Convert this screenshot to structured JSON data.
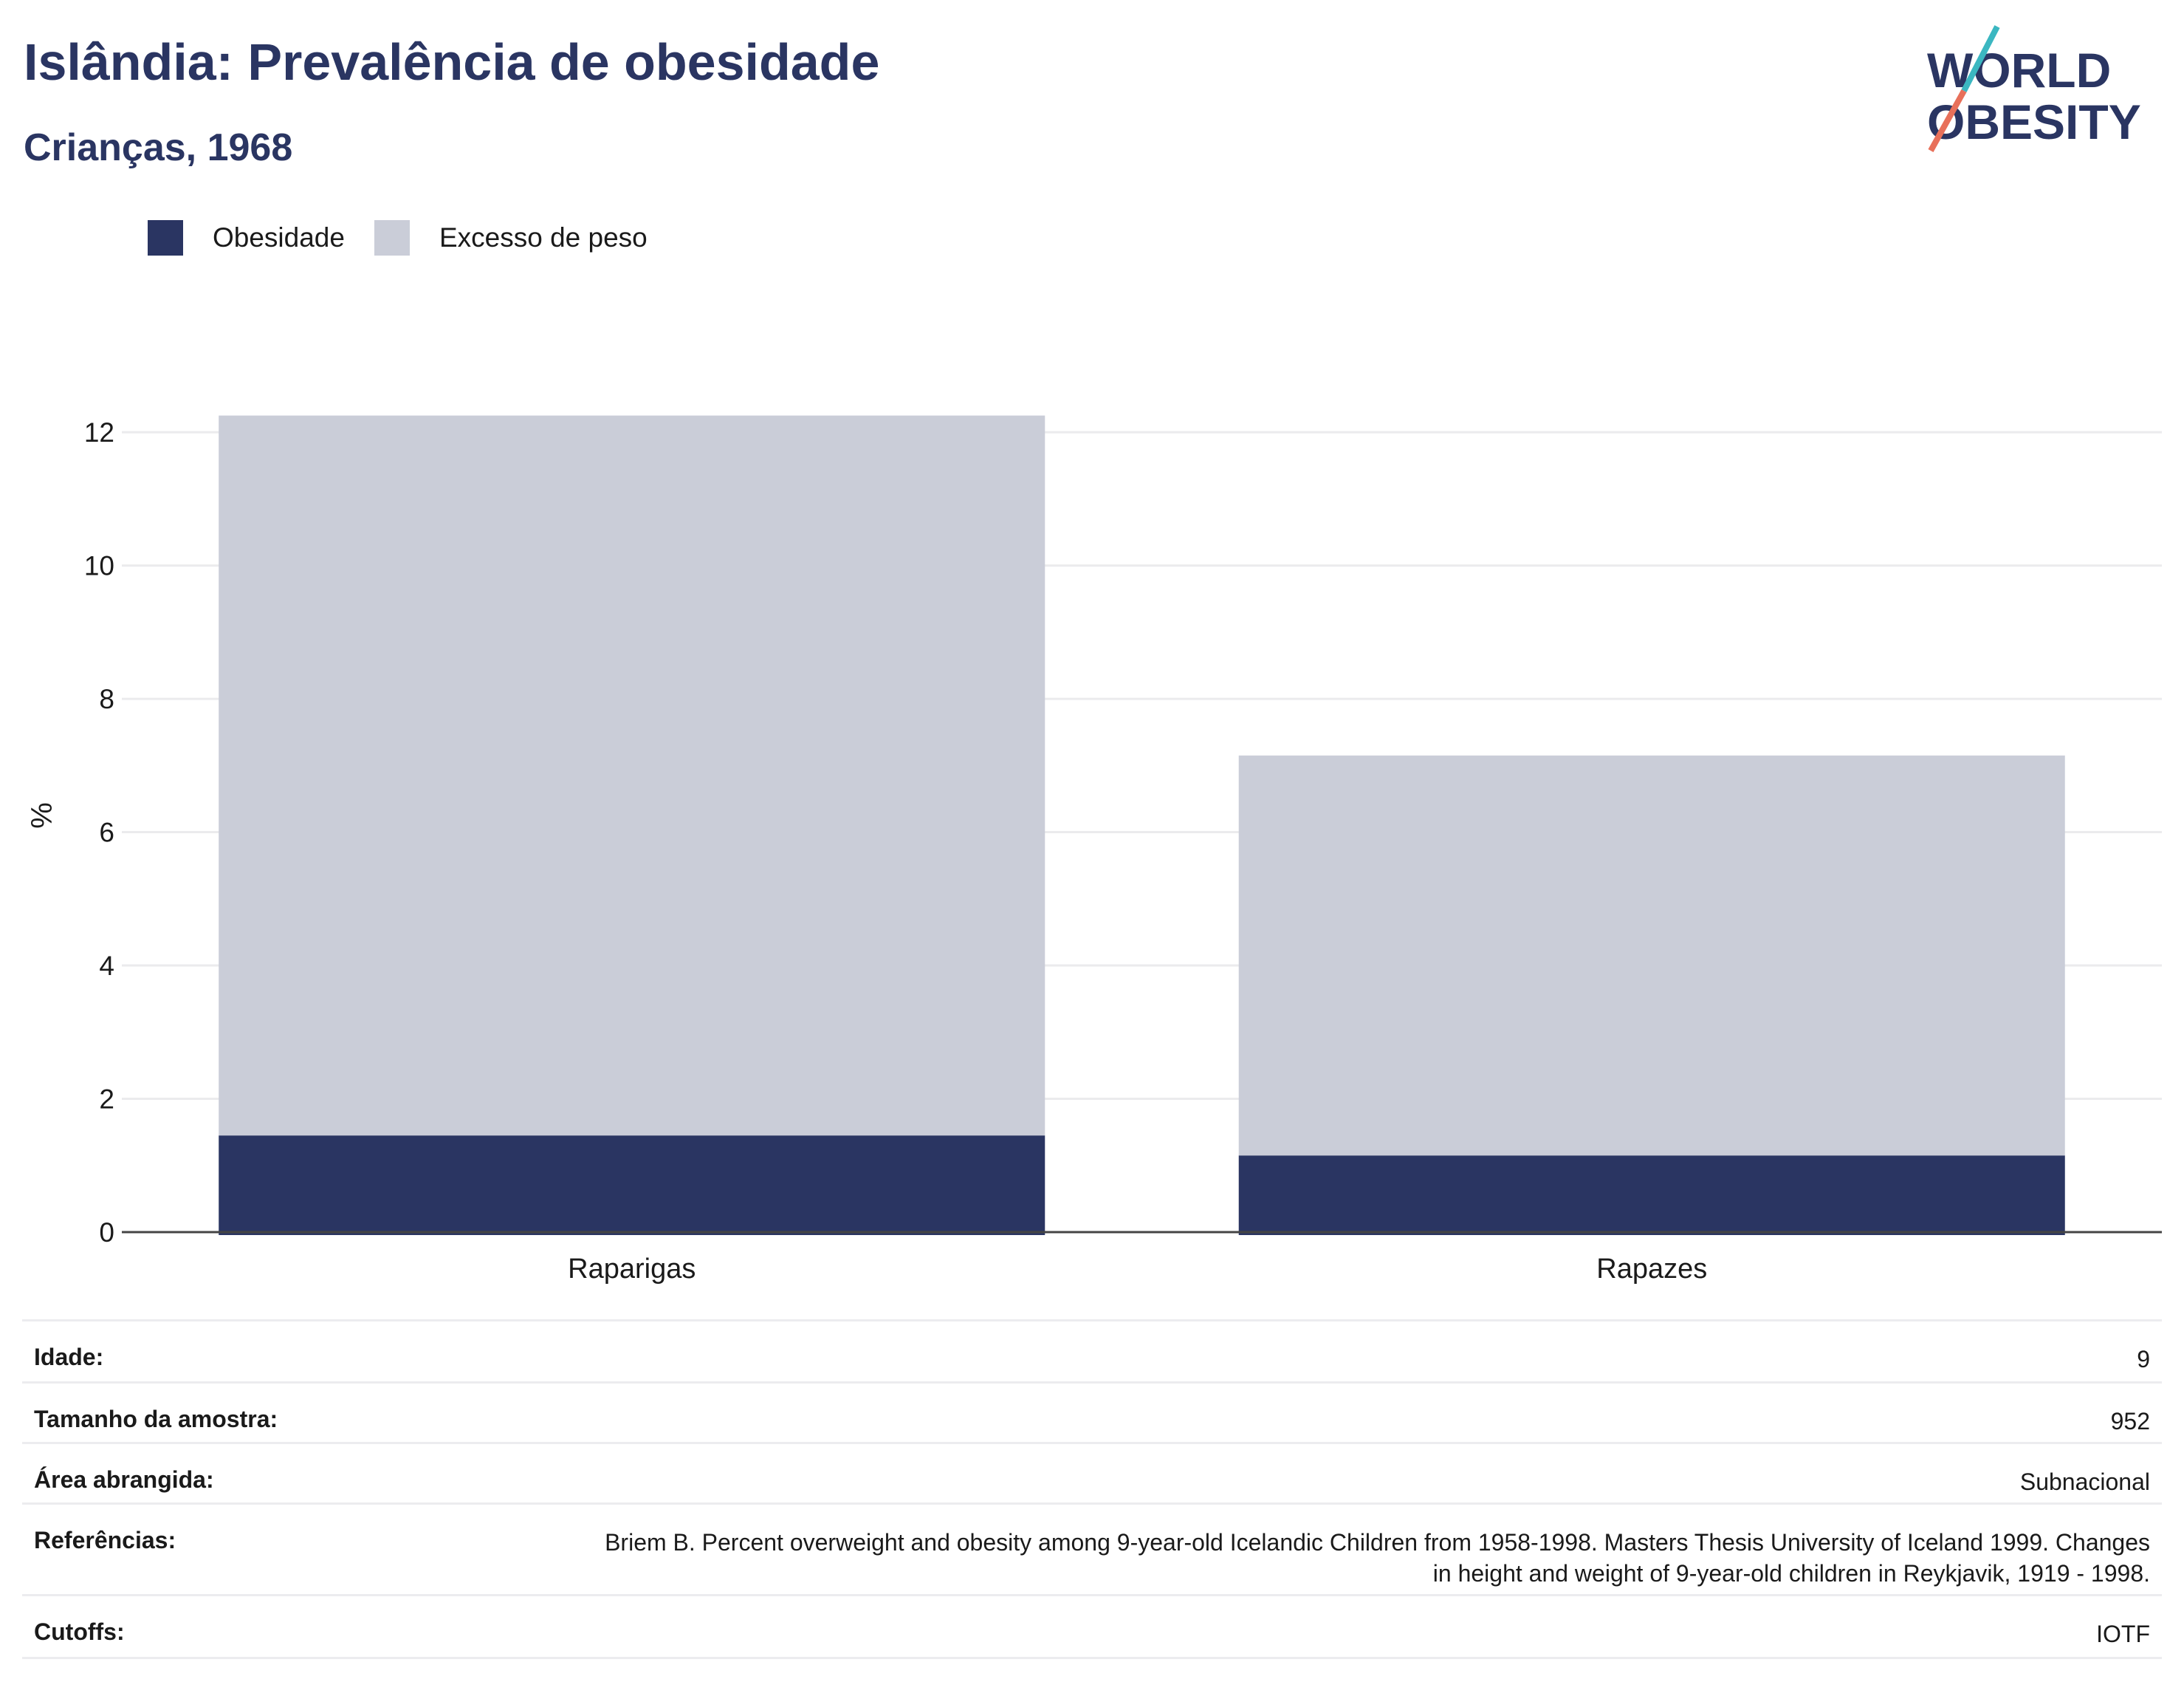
{
  "header": {
    "title": "Islândia: Prevalência de obesidade",
    "subtitle": "Crianças, 1968"
  },
  "logo": {
    "line1": "WORLD",
    "line2": "OBESITY"
  },
  "colors": {
    "obesity": "#2a3562",
    "overweight": "#cacdd8",
    "title": "#2a3562",
    "logo_teal": "#3bb7c1",
    "logo_coral": "#e8705a"
  },
  "legend": [
    {
      "label": "Obesidade",
      "color": "#2a3562"
    },
    {
      "label": "Excesso de peso",
      "color": "#cacdd8"
    }
  ],
  "chart_data": {
    "type": "bar",
    "stacked": true,
    "categories": [
      "Raparigas",
      "Rapazes"
    ],
    "series": [
      {
        "name": "Obesidade",
        "values": [
          1.45,
          1.15
        ]
      },
      {
        "name": "Excesso de peso",
        "values": [
          10.8,
          6.0
        ]
      }
    ],
    "ylabel": "%",
    "ylim": [
      0,
      12.5
    ],
    "yticks": [
      0,
      2,
      4,
      6,
      8,
      10,
      12
    ],
    "grid": true,
    "legend_position": "top-left"
  },
  "info": [
    {
      "label": "Idade:",
      "value": "9"
    },
    {
      "label": "Tamanho da amostra:",
      "value": "952"
    },
    {
      "label": "Área abrangida:",
      "value": "Subnacional"
    },
    {
      "label": "Referências:",
      "value": "Briem B. Percent overweight and obesity among 9-year-old Icelandic Children from 1958-1998. Masters Thesis University of Iceland 1999. Changes in height and weight of 9-year-old children in Reykjavik, 1919 - 1998."
    },
    {
      "label": "Cutoffs:",
      "value": "IOTF"
    }
  ]
}
